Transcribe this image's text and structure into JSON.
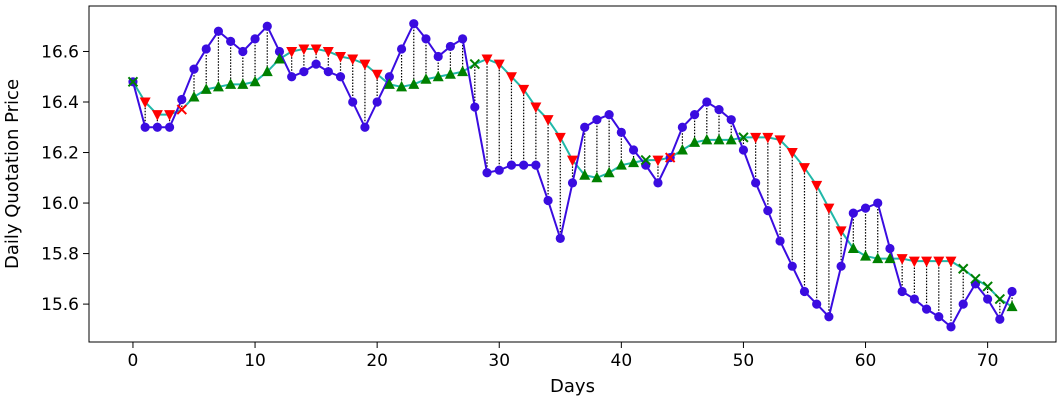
{
  "chart_data": {
    "type": "line",
    "xlabel": "Days",
    "ylabel": "Daily Quotation Price",
    "xlim": [
      -3.6,
      75.6
    ],
    "ylim": [
      15.45,
      16.78
    ],
    "xticks": [
      0,
      10,
      20,
      30,
      40,
      50,
      60,
      70
    ],
    "yticks": [
      15.6,
      15.8,
      16.0,
      16.2,
      16.4,
      16.6
    ],
    "ytick_labels": [
      "15.6",
      "15.8",
      "16.0",
      "16.2",
      "16.4",
      "16.6"
    ],
    "grid": false,
    "colors": {
      "price": "#3a0ce0",
      "trend": "#20b8a8",
      "up": "#008000",
      "down": "#ff0000",
      "connector": "#000000"
    },
    "series": [
      {
        "key": "price",
        "style": "line+circle",
        "x": [
          0,
          1,
          2,
          3,
          4,
          5,
          6,
          7,
          8,
          9,
          10,
          11,
          12,
          13,
          14,
          15,
          16,
          17,
          18,
          19,
          20,
          21,
          22,
          23,
          24,
          25,
          26,
          27,
          28,
          29,
          30,
          31,
          32,
          33,
          34,
          35,
          36,
          37,
          38,
          39,
          40,
          41,
          42,
          43,
          44,
          45,
          46,
          47,
          48,
          49,
          50,
          51,
          52,
          53,
          54,
          55,
          56,
          57,
          58,
          59,
          60,
          61,
          62,
          63,
          64,
          65,
          66,
          67,
          68,
          69,
          70,
          71,
          72
        ],
        "y": [
          16.48,
          16.3,
          16.3,
          16.3,
          16.41,
          16.53,
          16.61,
          16.68,
          16.64,
          16.6,
          16.65,
          16.7,
          16.6,
          16.5,
          16.52,
          16.55,
          16.52,
          16.5,
          16.4,
          16.3,
          16.4,
          16.5,
          16.61,
          16.71,
          16.65,
          16.58,
          16.62,
          16.65,
          16.38,
          16.12,
          16.13,
          16.15,
          16.15,
          16.15,
          16.01,
          15.86,
          16.08,
          16.3,
          16.33,
          16.35,
          16.28,
          16.21,
          16.15,
          16.08,
          16.18,
          16.3,
          16.35,
          16.4,
          16.37,
          16.33,
          16.21,
          16.08,
          15.97,
          15.85,
          15.75,
          15.65,
          15.6,
          15.55,
          15.75,
          15.96,
          15.98,
          16.0,
          15.82,
          15.65,
          15.62,
          15.58,
          15.55,
          15.51,
          15.6,
          15.68,
          15.62,
          15.54,
          15.65
        ]
      },
      {
        "key": "trend",
        "style": "line+marker",
        "x": [
          0,
          1,
          2,
          3,
          4,
          5,
          6,
          7,
          8,
          9,
          10,
          11,
          12,
          13,
          14,
          15,
          16,
          17,
          18,
          19,
          20,
          21,
          22,
          23,
          24,
          25,
          26,
          27,
          28,
          29,
          30,
          31,
          32,
          33,
          34,
          35,
          36,
          37,
          38,
          39,
          40,
          41,
          42,
          43,
          44,
          45,
          46,
          47,
          48,
          49,
          50,
          51,
          52,
          53,
          54,
          55,
          56,
          57,
          58,
          59,
          60,
          61,
          62,
          63,
          64,
          65,
          66,
          67,
          68,
          69,
          70,
          71,
          72
        ],
        "y": [
          16.48,
          16.4,
          16.35,
          16.35,
          16.37,
          16.42,
          16.45,
          16.46,
          16.47,
          16.47,
          16.48,
          16.52,
          16.57,
          16.6,
          16.61,
          16.61,
          16.6,
          16.58,
          16.57,
          16.55,
          16.51,
          16.47,
          16.46,
          16.47,
          16.49,
          16.5,
          16.51,
          16.52,
          16.55,
          16.57,
          16.55,
          16.5,
          16.45,
          16.38,
          16.33,
          16.26,
          16.17,
          16.11,
          16.1,
          16.12,
          16.15,
          16.16,
          16.17,
          16.17,
          16.18,
          16.21,
          16.24,
          16.25,
          16.25,
          16.25,
          16.26,
          16.26,
          16.26,
          16.25,
          16.2,
          16.14,
          16.07,
          15.98,
          15.89,
          15.82,
          15.79,
          15.78,
          15.78,
          15.78,
          15.77,
          15.77,
          15.77,
          15.77,
          15.74,
          15.7,
          15.67,
          15.62,
          15.59
        ],
        "markers": [
          "x",
          "down",
          "down",
          "down",
          "x",
          "up",
          "up",
          "up",
          "up",
          "up",
          "up",
          "up",
          "up",
          "down",
          "down",
          "down",
          "down",
          "down",
          "down",
          "down",
          "down",
          "up",
          "up",
          "up",
          "up",
          "up",
          "up",
          "up",
          "x",
          "down",
          "down",
          "down",
          "down",
          "down",
          "down",
          "down",
          "down",
          "up",
          "up",
          "up",
          "up",
          "up",
          "x",
          "down",
          "x",
          "up",
          "up",
          "up",
          "up",
          "up",
          "x",
          "down",
          "down",
          "down",
          "down",
          "down",
          "down",
          "down",
          "down",
          "up",
          "up",
          "up",
          "up",
          "down",
          "down",
          "down",
          "down",
          "down",
          "x",
          "x",
          "x",
          "x",
          "up"
        ]
      }
    ]
  }
}
